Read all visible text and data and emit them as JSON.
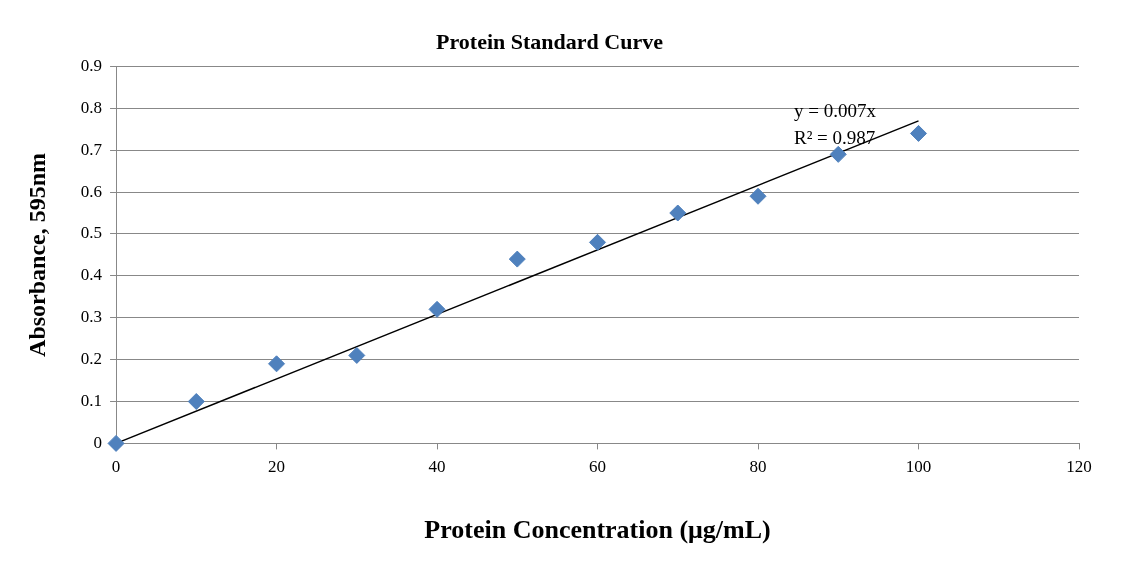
{
  "chart_data": {
    "type": "scatter",
    "title": "Protein Standard Curve",
    "xlabel": "Protein Concentration (μg/mL)",
    "ylabel": "Absorbance, 595nm",
    "x": [
      0,
      10,
      20,
      30,
      40,
      50,
      60,
      70,
      80,
      90,
      100
    ],
    "series": [
      {
        "color": "#4f81bd",
        "values": [
          0,
          0.1,
          0.19,
          0.21,
          0.32,
          0.44,
          0.48,
          0.55,
          0.59,
          0.69,
          0.74
        ]
      },
      {
        "type": "line",
        "color": "#000000",
        "x": [
          0,
          100
        ],
        "values": [
          0,
          0.77
        ],
        "marker": "none"
      }
    ],
    "marker": "diamond",
    "grid": "y",
    "legend": false,
    "xlim": [
      0,
      120
    ],
    "xticks": [
      0,
      20,
      40,
      60,
      80,
      100,
      120
    ],
    "ylim": [
      0,
      0.9
    ],
    "yticks": [
      0,
      0.1,
      0.2,
      0.3,
      0.4,
      0.5,
      0.6,
      0.7,
      0.8,
      0.9
    ],
    "annotations": [
      "y = 0.007x",
      "R² = 0.987"
    ]
  }
}
